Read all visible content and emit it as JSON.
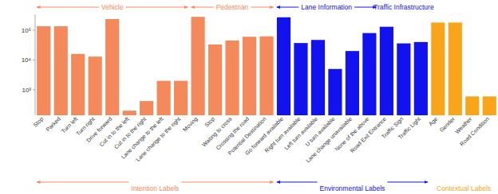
{
  "chart_data": {
    "type": "bar",
    "log": "y",
    "grid": false,
    "tick_labels": "y",
    "categories": [
      "Stop",
      "Parked",
      "Turn left",
      "Turn right",
      "Drive forward",
      "Cut in to the left",
      "Cut in to the right",
      "Lane change to the left",
      "Lane change to the right",
      "Moving",
      "Stop",
      "Waiting to cross",
      "Crossing the road",
      "Potential Destination",
      "Go forward available",
      "Right turn available",
      "Left turn available",
      "U turn available",
      "Lane change unavailable",
      "None of the above",
      "Road Exit Entrance",
      "Traffic Sign",
      "Traffic Light",
      "Age",
      "Gender",
      "Weather",
      "Road Condition"
    ],
    "values": [
      135000,
      135000,
      16000,
      13000,
      235000,
      200,
      420,
      2000,
      2000,
      280000,
      33000,
      45000,
      60000,
      62000,
      270000,
      37000,
      47000,
      5000,
      20000,
      80000,
      130000,
      36000,
      40000,
      180000,
      180000,
      600,
      600
    ],
    "colors": [
      "#f4895c",
      "#f4895c",
      "#f4895c",
      "#f4895c",
      "#f4895c",
      "#f4895c",
      "#f4895c",
      "#f4895c",
      "#f4895c",
      "#f4895c",
      "#f4895c",
      "#f4895c",
      "#f4895c",
      "#f4895c",
      "#1212ee",
      "#1212ee",
      "#1212ee",
      "#1212ee",
      "#1212ee",
      "#1212ee",
      "#1212ee",
      "#1212ee",
      "#1212ee",
      "#f9a51c",
      "#f9a51c",
      "#f9a51c",
      "#f9a51c"
    ],
    "ylim": [
      140,
      340000
    ],
    "yticks": [
      {
        "value": 1000,
        "label": "10³"
      },
      {
        "value": 10000,
        "label": "10⁴"
      },
      {
        "value": 100000,
        "label": "10⁵"
      }
    ],
    "top_groups": [
      {
        "label": "Vehicle",
        "count": 9
      },
      {
        "label": "Pedestrian",
        "count": 5
      },
      {
        "label": "Lane Information",
        "count": 6
      },
      {
        "label": "Traffic Infrastructure",
        "count": 3
      },
      {
        "label": null,
        "count": 4
      }
    ],
    "bottom_groups": [
      {
        "label": "Intention Labels",
        "count": 14
      },
      {
        "label": "Environmental Labels",
        "count": 9
      },
      {
        "label": "Contextual Labels",
        "count": 4
      }
    ]
  }
}
